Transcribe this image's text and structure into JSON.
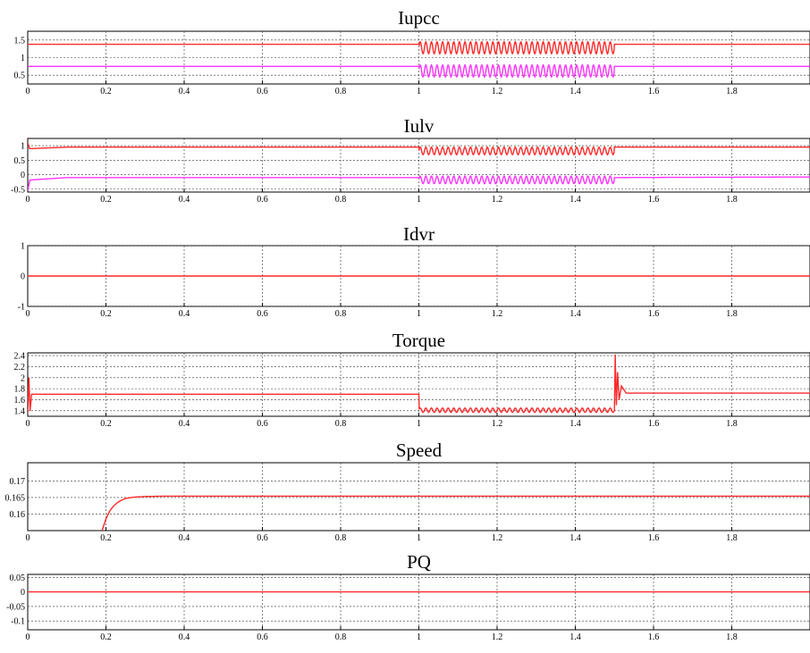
{
  "chart_data": [
    {
      "type": "line",
      "title": "Iupcc",
      "xlabel": "",
      "ylabel": "",
      "xlim": [
        0,
        2
      ],
      "ylim": [
        0.25,
        1.75
      ],
      "x_ticks": [
        0,
        0.2,
        0.4,
        0.6,
        0.8,
        1,
        1.2,
        1.4,
        1.6,
        1.8
      ],
      "x_tick_labels": [
        "0",
        "0.2",
        "0.4",
        "0.6",
        "0.8",
        "1",
        "1.2",
        "1.4",
        "1.6",
        "1.8"
      ],
      "y_ticks": [
        0.5,
        1,
        1.5
      ],
      "y_tick_labels": [
        "0.5",
        "1",
        "1.5"
      ],
      "grid": true,
      "series": [
        {
          "color": "#ff2a2a",
          "x": [
            0,
            1,
            1.5,
            2
          ],
          "y": [
            1.38,
            1.38,
            1.38,
            1.38
          ],
          "oscillation": {
            "from": 1,
            "to": 1.5,
            "center": 1.28,
            "amplitude": 0.17,
            "cycles": 35
          }
        },
        {
          "color": "#ff33ff",
          "x": [
            0,
            1,
            1.5,
            2
          ],
          "y": [
            0.75,
            0.75,
            0.75,
            0.75
          ],
          "oscillation": {
            "from": 1,
            "to": 1.5,
            "center": 0.62,
            "amplitude": 0.17,
            "cycles": 35
          }
        }
      ]
    },
    {
      "type": "line",
      "title": "Iulv",
      "xlabel": "",
      "ylabel": "",
      "xlim": [
        0,
        2
      ],
      "ylim": [
        -0.6,
        1.25
      ],
      "x_ticks": [
        0,
        0.2,
        0.4,
        0.6,
        0.8,
        1,
        1.2,
        1.4,
        1.6,
        1.8
      ],
      "x_tick_labels": [
        "0",
        "0.2",
        "0.4",
        "0.6",
        "0.8",
        "1",
        "1.2",
        "1.4",
        "1.6",
        "1.8"
      ],
      "y_ticks": [
        -0.5,
        0,
        0.5,
        1
      ],
      "y_tick_labels": [
        "-0.5",
        "0",
        "0.5",
        "1"
      ],
      "grid": true,
      "series": [
        {
          "color": "#ff2a2a",
          "x": [
            0,
            0.005,
            0.01,
            0.1,
            1,
            1.5,
            2
          ],
          "y": [
            1.1,
            0.9,
            0.9,
            0.95,
            0.95,
            0.95,
            0.95
          ],
          "oscillation": {
            "from": 1,
            "to": 1.5,
            "center": 0.82,
            "amplitude": 0.13,
            "cycles": 35
          }
        },
        {
          "color": "#ff33ff",
          "x": [
            0,
            0.005,
            0.01,
            0.1,
            1,
            1.5,
            2
          ],
          "y": [
            -0.55,
            -0.2,
            -0.18,
            -0.1,
            -0.1,
            -0.1,
            -0.08
          ],
          "oscillation": {
            "from": 1,
            "to": 1.5,
            "center": -0.18,
            "amplitude": 0.13,
            "cycles": 35
          }
        }
      ]
    },
    {
      "type": "line",
      "title": "Idvr",
      "xlabel": "",
      "ylabel": "",
      "xlim": [
        0,
        2
      ],
      "ylim": [
        -1,
        1
      ],
      "x_ticks": [
        0,
        0.2,
        0.4,
        0.6,
        0.8,
        1,
        1.2,
        1.4,
        1.6,
        1.8
      ],
      "x_tick_labels": [
        "0",
        "0.2",
        "0.4",
        "0.6",
        "0.8",
        "1",
        "1.2",
        "1.4",
        "1.6",
        "1.8"
      ],
      "y_ticks": [
        -1,
        0,
        1
      ],
      "y_tick_labels": [
        "-1",
        "0",
        "1"
      ],
      "grid": true,
      "series": [
        {
          "color": "#ff2a2a",
          "x": [
            0,
            2
          ],
          "y": [
            0,
            0
          ]
        }
      ]
    },
    {
      "type": "line",
      "title": "Torque",
      "xlabel": "",
      "ylabel": "",
      "xlim": [
        0,
        2
      ],
      "ylim": [
        1.3,
        2.45
      ],
      "x_ticks": [
        0,
        0.2,
        0.4,
        0.6,
        0.8,
        1,
        1.2,
        1.4,
        1.6,
        1.8
      ],
      "x_tick_labels": [
        "0",
        "0.2",
        "0.4",
        "0.6",
        "0.8",
        "1",
        "1.2",
        "1.4",
        "1.6",
        "1.8"
      ],
      "y_ticks": [
        1.4,
        1.6,
        1.8,
        2,
        2.2,
        2.4
      ],
      "y_tick_labels": [
        "1.4",
        "1.6",
        "1.8",
        "2",
        "2.2",
        "2.4"
      ],
      "grid": true,
      "series": [
        {
          "color": "#ff2a2a",
          "x": [
            0,
            0.003,
            0.006,
            0.01,
            1,
            1.001,
            1.5,
            1.502,
            1.505,
            1.508,
            1.512,
            1.518,
            1.53,
            2
          ],
          "y": [
            1.35,
            2.0,
            1.4,
            1.7,
            1.7,
            1.41,
            1.41,
            2.42,
            1.5,
            2.1,
            1.6,
            1.85,
            1.72,
            1.72
          ],
          "oscillation": {
            "from": 1,
            "to": 1.5,
            "center": 1.41,
            "amplitude": 0.04,
            "cycles": 35
          }
        }
      ]
    },
    {
      "type": "line",
      "title": "Speed",
      "xlabel": "",
      "ylabel": "",
      "xlim": [
        0,
        2
      ],
      "ylim": [
        0.155,
        0.1755
      ],
      "x_ticks": [
        0,
        0.2,
        0.4,
        0.6,
        0.8,
        1,
        1.2,
        1.4,
        1.6,
        1.8
      ],
      "x_tick_labels": [
        "0",
        "0.2",
        "0.4",
        "0.6",
        "0.8",
        "1",
        "1.2",
        "1.4",
        "1.6",
        "1.8"
      ],
      "y_ticks": [
        0.16,
        0.165,
        0.17
      ],
      "y_tick_labels": [
        "0.16",
        "0.165",
        "0.17"
      ],
      "grid": true,
      "series": [
        {
          "color": "#ff2a2a",
          "x": [
            0.19,
            0.2,
            0.21,
            0.22,
            0.23,
            0.24,
            0.25,
            0.27,
            0.3,
            0.35,
            2
          ],
          "y": [
            0.155,
            0.1585,
            0.161,
            0.1625,
            0.1635,
            0.1642,
            0.1647,
            0.1651,
            0.1653,
            0.1654,
            0.1654
          ]
        }
      ]
    },
    {
      "type": "line",
      "title": "PQ",
      "xlabel": "",
      "ylabel": "",
      "xlim": [
        0,
        2
      ],
      "ylim": [
        -0.13,
        0.06
      ],
      "x_ticks": [
        0,
        0.2,
        0.4,
        0.6,
        0.8,
        1,
        1.2,
        1.4,
        1.6,
        1.8
      ],
      "x_tick_labels": [
        "0",
        "0.2",
        "0.4",
        "0.6",
        "0.8",
        "1",
        "1.2",
        "1.4",
        "1.6",
        "1.8"
      ],
      "y_ticks": [
        -0.1,
        -0.05,
        0,
        0.05
      ],
      "y_tick_labels": [
        "-0.1",
        "-0.05",
        "0",
        "0.05"
      ],
      "grid": true,
      "series": [
        {
          "color": "#ff2a2a",
          "x": [
            0,
            2
          ],
          "y": [
            0,
            0
          ]
        }
      ]
    }
  ]
}
